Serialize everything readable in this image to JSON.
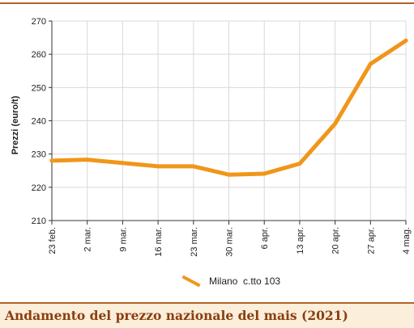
{
  "chart_data": {
    "type": "line",
    "title": "",
    "xlabel": "",
    "ylabel": "Prezzi (euro/t)",
    "ylim": [
      210,
      270
    ],
    "y_ticks": [
      210,
      220,
      230,
      240,
      250,
      260,
      270
    ],
    "categories": [
      "23 feb.",
      "2 mar.",
      "9 mar.",
      "16 mar.",
      "23 mar.",
      "30 mar.",
      "6 apr.",
      "13 apr.",
      "20 apr.",
      "27 apr.",
      "4 mag."
    ],
    "series": [
      {
        "name": "Milano  c.tto 103",
        "values": [
          228,
          228.3,
          227.3,
          226.3,
          226.3,
          223.8,
          224.1,
          227.1,
          239.1,
          257.1,
          264.1
        ],
        "color": "#f0961a"
      }
    ],
    "grid": true,
    "legend_position": "bottom-center"
  },
  "caption": "Andamento del prezzo nazionale del mais (2021)",
  "colors": {
    "rule": "#b0642a",
    "caption_bg": "#fbeeda",
    "caption_text": "#8a3e10",
    "grid": "#d9d9d9",
    "series": "#f0961a"
  }
}
